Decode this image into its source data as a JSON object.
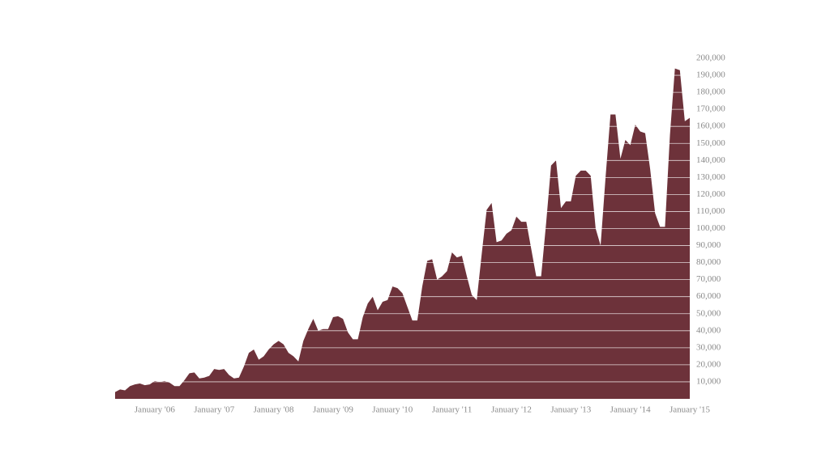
{
  "chart_data": {
    "type": "area",
    "color": "#6d323a",
    "grid": true,
    "grid_color": "#ffffff",
    "categories": [
      null,
      null,
      null,
      null,
      null,
      null,
      null,
      null,
      "January '06",
      null,
      null,
      null,
      null,
      null,
      null,
      null,
      null,
      null,
      null,
      null,
      "January '07",
      null,
      null,
      null,
      null,
      null,
      null,
      null,
      null,
      null,
      null,
      null,
      "January '08",
      null,
      null,
      null,
      null,
      null,
      null,
      null,
      null,
      null,
      null,
      null,
      "January '09",
      null,
      null,
      null,
      null,
      null,
      null,
      null,
      null,
      null,
      null,
      null,
      "January '10",
      null,
      null,
      null,
      null,
      null,
      null,
      null,
      null,
      null,
      null,
      null,
      "January '11",
      null,
      null,
      null,
      null,
      null,
      null,
      null,
      null,
      null,
      null,
      null,
      "January '12",
      null,
      null,
      null,
      null,
      null,
      null,
      null,
      null,
      null,
      null,
      null,
      "January '13",
      null,
      null,
      null,
      null,
      null,
      null,
      null,
      null,
      null,
      null,
      null,
      "January '14",
      null,
      null,
      null,
      null,
      null,
      null,
      null,
      null,
      null,
      null,
      null,
      "January '15"
    ],
    "values": [
      4000,
      5500,
      5000,
      7500,
      8500,
      9000,
      8000,
      8500,
      10500,
      10000,
      10500,
      9500,
      7500,
      7500,
      11000,
      15000,
      15500,
      12000,
      12500,
      13500,
      17500,
      17000,
      17500,
      14000,
      12000,
      12500,
      19000,
      27000,
      29000,
      23000,
      25000,
      29000,
      32000,
      34000,
      32000,
      27000,
      25000,
      22000,
      34000,
      41000,
      47000,
      40000,
      41000,
      41000,
      48000,
      48500,
      47000,
      39000,
      35000,
      35000,
      48000,
      56000,
      60000,
      52000,
      57000,
      58000,
      66000,
      65000,
      62000,
      54000,
      46000,
      46000,
      66000,
      81000,
      82000,
      70000,
      72000,
      75000,
      86000,
      83000,
      84000,
      72000,
      61000,
      58000,
      85000,
      111000,
      115000,
      92000,
      93000,
      97000,
      99000,
      107000,
      104000,
      104000,
      88000,
      72000,
      72000,
      103000,
      137000,
      140000,
      112000,
      116000,
      116000,
      131000,
      134000,
      134000,
      131000,
      100000,
      90000,
      130000,
      167000,
      167000,
      141000,
      152000,
      149000,
      161000,
      157000,
      156000,
      135000,
      109000,
      101000,
      101000,
      155000,
      194000,
      193000,
      163000,
      165000
    ],
    "ylim": [
      0,
      200000
    ],
    "yticks": [
      {
        "value": 10000,
        "label": "10,000"
      },
      {
        "value": 20000,
        "label": "20,000"
      },
      {
        "value": 30000,
        "label": "30,000"
      },
      {
        "value": 40000,
        "label": "40,000"
      },
      {
        "value": 50000,
        "label": "50,000"
      },
      {
        "value": 60000,
        "label": "60,000"
      },
      {
        "value": 70000,
        "label": "70,000"
      },
      {
        "value": 80000,
        "label": "80,000"
      },
      {
        "value": 90000,
        "label": "90,000"
      },
      {
        "value": 100000,
        "label": "100,000"
      },
      {
        "value": 110000,
        "label": "110,000"
      },
      {
        "value": 120000,
        "label": "120,000"
      },
      {
        "value": 130000,
        "label": "130,000"
      },
      {
        "value": 140000,
        "label": "140,000"
      },
      {
        "value": 150000,
        "label": "150,000"
      },
      {
        "value": 160000,
        "label": "160,000"
      },
      {
        "value": 170000,
        "label": "170,000"
      },
      {
        "value": 180000,
        "label": "180,000"
      },
      {
        "value": 190000,
        "label": "190,000"
      },
      {
        "value": 200000,
        "label": "200,000"
      }
    ]
  }
}
